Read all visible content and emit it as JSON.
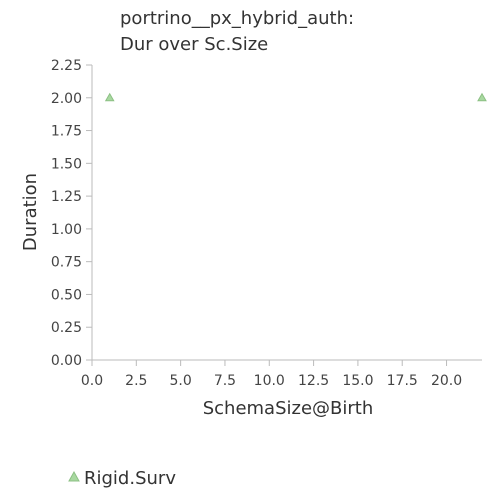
{
  "chart_data": {
    "type": "scatter",
    "title_lines": [
      "portrino__px_hybrid_auth:",
      "Dur over Sc.Size"
    ],
    "xlabel": "SchemaSize@Birth",
    "ylabel": "Duration",
    "xlim": [
      0,
      22
    ],
    "ylim": [
      0,
      2.25
    ],
    "x_ticks": [
      0,
      2.5,
      5,
      7.5,
      10,
      12.5,
      15,
      17.5,
      20
    ],
    "x_tick_labels": [
      "0.0",
      "2.5",
      "5.0",
      "7.5",
      "10.0",
      "12.5",
      "15.0",
      "17.5",
      "20.0"
    ],
    "y_ticks": [
      0,
      0.25,
      0.5,
      0.75,
      1,
      1.25,
      1.5,
      1.75,
      2,
      2.25
    ],
    "y_tick_labels": [
      "0.00",
      "0.25",
      "0.50",
      "0.75",
      "1.00",
      "1.25",
      "1.50",
      "1.75",
      "2.00",
      "2.25"
    ],
    "grid": false,
    "legend_position": "bottom-left",
    "series": [
      {
        "name": "Rigid.Surv",
        "marker": "triangle",
        "color": "#a8d8a0",
        "stroke": "#8cc084",
        "points": [
          {
            "x": 1,
            "y": 2
          },
          {
            "x": 22,
            "y": 2
          }
        ]
      }
    ]
  }
}
